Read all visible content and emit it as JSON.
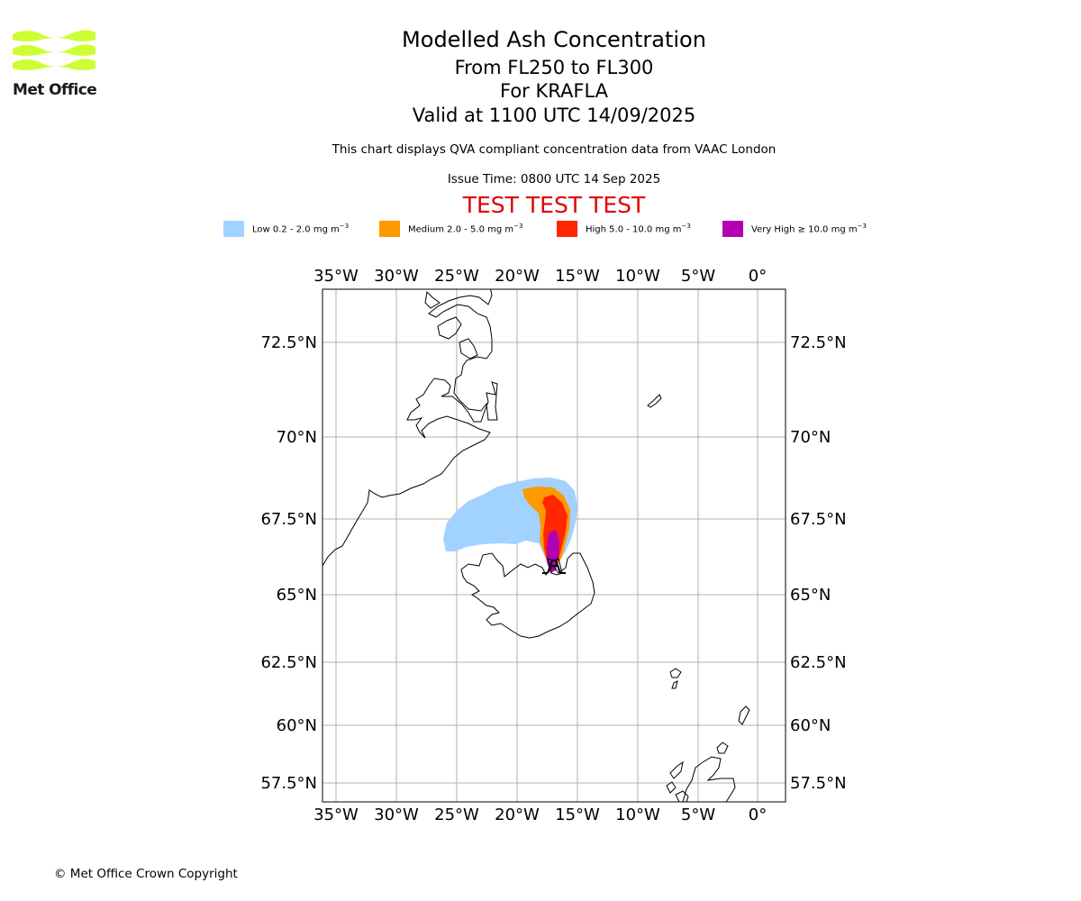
{
  "brand": {
    "name": "Met Office",
    "logo_color": "#ccff33"
  },
  "header": {
    "title": "Modelled Ash Concentration",
    "flight_levels": "From FL250 to FL300",
    "volcano": "For KRAFLA",
    "valid_time": "Valid at 1100 UTC 14/09/2025",
    "description": "This chart displays QVA compliant concentration data from VAAC London",
    "issue_time": "Issue Time: 0800 UTC 14 Sep 2025",
    "test_banner": "TEST TEST TEST",
    "test_banner_color": "#e00000"
  },
  "legend": [
    {
      "label": "Low 0.2 - 2.0 mg m",
      "unit_exp": "−3",
      "color": "#a2d2ff"
    },
    {
      "label": "Medium 2.0 - 5.0 mg m",
      "unit_exp": "−3",
      "color": "#ff9900"
    },
    {
      "label": "High 5.0 - 10.0 mg m",
      "unit_exp": "−3",
      "color": "#ff2600"
    },
    {
      "label": "Very High  ≥  10.0 mg m",
      "unit_exp": "−3",
      "color": "#b300b3"
    }
  ],
  "map": {
    "lon_labels": [
      "35°W",
      "30°W",
      "25°W",
      "20°W",
      "15°W",
      "10°W",
      "5°W",
      "0°"
    ],
    "lat_labels": [
      "72.5°N",
      "70°N",
      "67.5°N",
      "65°N",
      "62.5°N",
      "60°N",
      "57.5°N"
    ],
    "gridline_color": "#b0b0b0",
    "coastline_color": "#000000"
  },
  "footer": {
    "copyright": "© Met Office Crown Copyright"
  }
}
